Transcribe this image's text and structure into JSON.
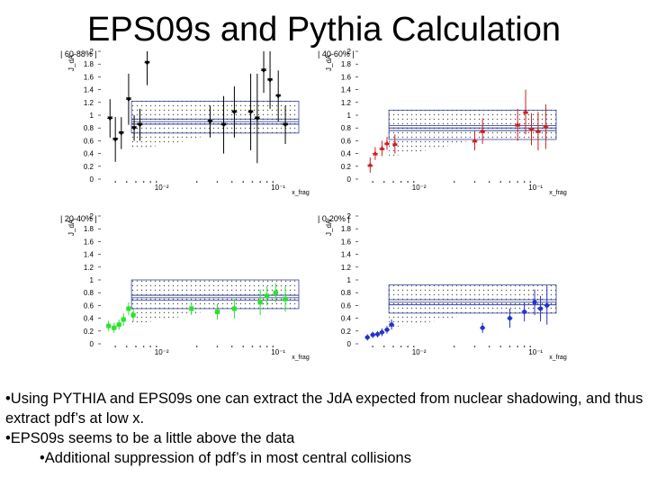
{
  "title": "EPS09s and Pythia Calculation",
  "bullets": [
    "•Using PYTHIA and EPS09s one can extract the JdA expected from nuclear shadowing, and thus extract pdf’s at low x.",
    "•EPS09s seems to be a little above the data",
    "•Additional suppression of pdf’s in most central collisions"
  ],
  "chart_data": [
    {
      "type": "scatter",
      "title": "| 60-88% |",
      "ylabel": "J_dA",
      "xlabel": "x_frag",
      "yticks": [
        "2",
        "1.8",
        "1.6",
        "1.4",
        "1.2",
        "1",
        "0.8",
        "0.6",
        "0.4",
        "0.2",
        "0"
      ],
      "xticks": [
        "10⁻²",
        "10⁻¹"
      ],
      "xlim": [
        0.003,
        0.15
      ],
      "ylim": [
        0,
        2
      ],
      "color": "#000000",
      "marker": "triangle-down",
      "points": [
        {
          "x": 0.0036,
          "y": 0.95,
          "err": 0.3
        },
        {
          "x": 0.004,
          "y": 0.62,
          "err": 0.35
        },
        {
          "x": 0.0045,
          "y": 0.72,
          "err": 0.25
        },
        {
          "x": 0.0052,
          "y": 1.25,
          "err": 0.4
        },
        {
          "x": 0.0058,
          "y": 0.8,
          "err": 0.2
        },
        {
          "x": 0.0065,
          "y": 0.85,
          "err": 0.25
        },
        {
          "x": 0.0075,
          "y": 1.82,
          "err": 0.35
        },
        {
          "x": 0.026,
          "y": 0.9,
          "err": 0.25
        },
        {
          "x": 0.034,
          "y": 0.85,
          "err": 0.45
        },
        {
          "x": 0.042,
          "y": 1.05,
          "err": 0.4
        },
        {
          "x": 0.058,
          "y": 1.05,
          "err": 0.6
        },
        {
          "x": 0.066,
          "y": 0.95,
          "err": 0.7
        },
        {
          "x": 0.075,
          "y": 1.7,
          "err": 0.35
        },
        {
          "x": 0.085,
          "y": 1.55,
          "err": 0.45
        },
        {
          "x": 0.1,
          "y": 1.3,
          "err": 0.4
        },
        {
          "x": 0.115,
          "y": 0.85,
          "err": 0.3
        }
      ],
      "band": {
        "x": [
          0.0055,
          0.15
        ],
        "center": 0.9,
        "lower": 0.72,
        "upper": 1.22,
        "low_x_lower": 0.45
      }
    },
    {
      "type": "scatter",
      "title": "| 40-60% |",
      "ylabel": "J_dA",
      "xlabel": "x_frag",
      "yticks": [
        "2",
        "1.8",
        "1.6",
        "1.4",
        "1.2",
        "1",
        "0.8",
        "0.6",
        "0.4",
        "0.2",
        "0"
      ],
      "xticks": [
        "10⁻²",
        "10⁻¹"
      ],
      "xlim": [
        0.003,
        0.15
      ],
      "ylim": [
        0,
        2
      ],
      "color": "#cc1f1f",
      "marker": "triangle-up",
      "points": [
        {
          "x": 0.0038,
          "y": 0.22,
          "err": 0.12
        },
        {
          "x": 0.0042,
          "y": 0.4,
          "err": 0.1
        },
        {
          "x": 0.0048,
          "y": 0.48,
          "err": 0.12
        },
        {
          "x": 0.0053,
          "y": 0.56,
          "err": 0.1
        },
        {
          "x": 0.0062,
          "y": 0.55,
          "err": 0.15
        },
        {
          "x": 0.03,
          "y": 0.6,
          "err": 0.15
        },
        {
          "x": 0.035,
          "y": 0.75,
          "err": 0.2
        },
        {
          "x": 0.07,
          "y": 0.85,
          "err": 0.25
        },
        {
          "x": 0.082,
          "y": 1.05,
          "err": 0.35
        },
        {
          "x": 0.092,
          "y": 0.78,
          "err": 0.25
        },
        {
          "x": 0.105,
          "y": 0.75,
          "err": 0.3
        },
        {
          "x": 0.122,
          "y": 0.82,
          "err": 0.35
        }
      ],
      "band": {
        "x": [
          0.0055,
          0.15
        ],
        "center": 0.8,
        "lower": 0.62,
        "upper": 1.08,
        "low_x_lower": 0.35
      }
    },
    {
      "type": "scatter",
      "title": "| 20-40% |",
      "ylabel": "J_dA",
      "xlabel": "x_frag",
      "yticks": [
        "2",
        "1.8",
        "1.6",
        "1.4",
        "1.2",
        "1",
        "0.8",
        "0.6",
        "0.4",
        "0.2",
        "0"
      ],
      "xticks": [
        "10⁻²",
        "10⁻¹"
      ],
      "xlim": [
        0.003,
        0.15
      ],
      "ylim": [
        0,
        2
      ],
      "color": "#2fe02f",
      "marker": "square",
      "points": [
        {
          "x": 0.0035,
          "y": 0.28,
          "err": 0.08
        },
        {
          "x": 0.0039,
          "y": 0.25,
          "err": 0.08
        },
        {
          "x": 0.0043,
          "y": 0.3,
          "err": 0.08
        },
        {
          "x": 0.0047,
          "y": 0.38,
          "err": 0.1
        },
        {
          "x": 0.0052,
          "y": 0.55,
          "err": 0.1
        },
        {
          "x": 0.0057,
          "y": 0.45,
          "err": 0.1
        },
        {
          "x": 0.018,
          "y": 0.55,
          "err": 0.1
        },
        {
          "x": 0.03,
          "y": 0.5,
          "err": 0.12
        },
        {
          "x": 0.042,
          "y": 0.55,
          "err": 0.15
        },
        {
          "x": 0.07,
          "y": 0.65,
          "err": 0.2
        },
        {
          "x": 0.08,
          "y": 0.75,
          "err": 0.15
        },
        {
          "x": 0.095,
          "y": 0.8,
          "err": 0.15
        },
        {
          "x": 0.115,
          "y": 0.7,
          "err": 0.2
        }
      ],
      "band": {
        "x": [
          0.0055,
          0.15
        ],
        "center": 0.72,
        "lower": 0.55,
        "upper": 1.0,
        "low_x_lower": 0.3
      }
    },
    {
      "type": "scatter",
      "title": "| 0-20% |",
      "ylabel": "J_dA",
      "xlabel": "x_frag",
      "yticks": [
        "2",
        "1.8",
        "1.6",
        "1.4",
        "1.2",
        "1",
        "0.8",
        "0.6",
        "0.4",
        "0.2",
        "0"
      ],
      "xticks": [
        "10⁻²",
        "10⁻¹"
      ],
      "xlim": [
        0.003,
        0.15
      ],
      "ylim": [
        0,
        2
      ],
      "color": "#2233cc",
      "marker": "circle",
      "points": [
        {
          "x": 0.0036,
          "y": 0.1,
          "err": 0.05
        },
        {
          "x": 0.004,
          "y": 0.14,
          "err": 0.05
        },
        {
          "x": 0.0044,
          "y": 0.15,
          "err": 0.05
        },
        {
          "x": 0.0048,
          "y": 0.18,
          "err": 0.06
        },
        {
          "x": 0.0053,
          "y": 0.22,
          "err": 0.06
        },
        {
          "x": 0.0058,
          "y": 0.3,
          "err": 0.08
        },
        {
          "x": 0.035,
          "y": 0.25,
          "err": 0.08
        },
        {
          "x": 0.06,
          "y": 0.4,
          "err": 0.15
        },
        {
          "x": 0.08,
          "y": 0.5,
          "err": 0.15
        },
        {
          "x": 0.098,
          "y": 0.65,
          "err": 0.2
        },
        {
          "x": 0.11,
          "y": 0.55,
          "err": 0.2
        },
        {
          "x": 0.125,
          "y": 0.6,
          "err": 0.3
        }
      ],
      "band": {
        "x": [
          0.0055,
          0.15
        ],
        "center": 0.65,
        "lower": 0.48,
        "upper": 0.92,
        "low_x_lower": 0.25
      }
    }
  ]
}
